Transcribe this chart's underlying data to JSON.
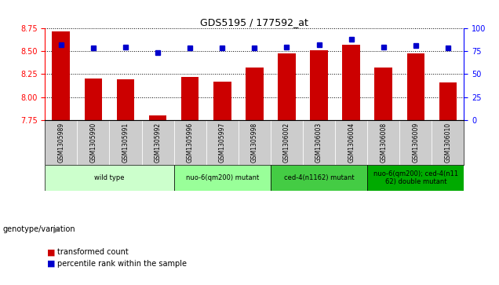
{
  "title": "GDS5195 / 177592_at",
  "samples": [
    "GSM1305989",
    "GSM1305990",
    "GSM1305991",
    "GSM1305992",
    "GSM1305996",
    "GSM1305997",
    "GSM1305998",
    "GSM1306002",
    "GSM1306003",
    "GSM1306004",
    "GSM1306008",
    "GSM1306009",
    "GSM1306010"
  ],
  "transformed_count": [
    8.72,
    8.2,
    8.19,
    7.8,
    8.22,
    8.17,
    8.32,
    8.48,
    8.51,
    8.57,
    8.32,
    8.48,
    8.16
  ],
  "percentile_rank": [
    82,
    79,
    80,
    74,
    79,
    79,
    79,
    80,
    82,
    88,
    80,
    81,
    79
  ],
  "ylim_left": [
    7.75,
    8.75
  ],
  "ylim_right": [
    0,
    100
  ],
  "yticks_left": [
    7.75,
    8.0,
    8.25,
    8.5,
    8.75
  ],
  "yticks_right": [
    0,
    25,
    50,
    75,
    100
  ],
  "bar_color": "#cc0000",
  "dot_color": "#0000cc",
  "groups": [
    {
      "label": "wild type",
      "indices": [
        0,
        1,
        2,
        3
      ],
      "color": "#ccffcc"
    },
    {
      "label": "nuo-6(qm200) mutant",
      "indices": [
        4,
        5,
        6
      ],
      "color": "#99ff99"
    },
    {
      "label": "ced-4(n1162) mutant",
      "indices": [
        7,
        8,
        9
      ],
      "color": "#44cc44"
    },
    {
      "label": "nuo-6(qm200); ced-4(n11\n62) double mutant",
      "indices": [
        10,
        11,
        12
      ],
      "color": "#00aa00"
    }
  ],
  "legend_bar_label": "transformed count",
  "legend_dot_label": "percentile rank within the sample",
  "genotype_label": "genotype/variation",
  "sample_box_color": "#cccccc",
  "fig_bg_color": "#ffffff"
}
